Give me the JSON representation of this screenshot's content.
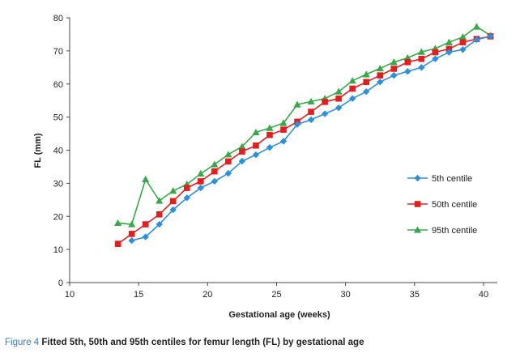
{
  "caption": {
    "figure_label": "Figure 4",
    "text": "Fitted 5th, 50th and 95th centiles for femur length (FL) by gestational age"
  },
  "chart_data": {
    "type": "line",
    "xlabel": "Gestational age (weeks)",
    "ylabel": "FL (mm)",
    "xlim": [
      10,
      41
    ],
    "ylim": [
      0,
      80
    ],
    "xticks": [
      10,
      15,
      20,
      25,
      30,
      35,
      40
    ],
    "yticks": [
      0,
      10,
      20,
      30,
      40,
      50,
      60,
      70,
      80
    ],
    "grid": false,
    "legend_position": "right",
    "series": [
      {
        "name": "5th centile",
        "color": "#2f8fd8",
        "marker": "diamond",
        "x": [
          14.5,
          15.5,
          16.5,
          17.5,
          18.5,
          19.5,
          20.5,
          21.5,
          22.5,
          23.5,
          24.5,
          25.5,
          26.5,
          27.5,
          28.5,
          29.5,
          30.5,
          31.5,
          32.5,
          33.5,
          34.5,
          35.5,
          36.5,
          37.5,
          38.5,
          39.5,
          40.5
        ],
        "values": [
          12.7,
          13.8,
          17.6,
          22.0,
          25.6,
          28.6,
          30.6,
          33.0,
          36.7,
          38.6,
          40.8,
          42.7,
          47.8,
          49.2,
          51.0,
          52.8,
          55.6,
          57.7,
          60.6,
          62.6,
          63.8,
          65.0,
          67.6,
          69.6,
          70.4,
          73.4,
          74.4
        ]
      },
      {
        "name": "50th centile",
        "color": "#e02020",
        "marker": "square",
        "x": [
          13.5,
          14.5,
          15.5,
          16.5,
          17.5,
          18.5,
          19.5,
          20.5,
          21.5,
          22.5,
          23.5,
          24.5,
          25.5,
          26.5,
          27.5,
          28.5,
          29.5,
          30.5,
          31.5,
          32.5,
          33.5,
          34.5,
          35.5,
          36.5,
          37.5,
          38.5,
          39.5,
          40.5
        ],
        "values": [
          11.7,
          14.7,
          17.6,
          20.6,
          24.6,
          28.6,
          30.6,
          33.6,
          36.6,
          39.6,
          41.4,
          44.6,
          46.2,
          48.6,
          51.6,
          54.6,
          55.6,
          58.6,
          60.6,
          62.6,
          64.6,
          66.6,
          67.6,
          69.6,
          70.6,
          72.6,
          73.6,
          74.4
        ]
      },
      {
        "name": "95th centile",
        "color": "#3aa84a",
        "marker": "triangle",
        "x": [
          13.5,
          14.5,
          15.5,
          16.5,
          17.5,
          18.5,
          19.5,
          20.5,
          21.5,
          22.5,
          23.5,
          24.5,
          25.5,
          26.5,
          27.5,
          28.5,
          29.5,
          30.5,
          31.5,
          32.5,
          33.5,
          34.5,
          35.5,
          36.5,
          37.5,
          38.5,
          39.5,
          40.5
        ],
        "values": [
          18.0,
          17.6,
          31.2,
          24.7,
          27.7,
          29.7,
          32.9,
          35.7,
          38.7,
          41.1,
          45.4,
          46.7,
          48.2,
          53.8,
          54.7,
          55.6,
          57.7,
          61.0,
          62.9,
          64.7,
          66.6,
          67.9,
          69.7,
          70.7,
          72.6,
          74.2,
          77.3,
          74.7
        ]
      }
    ]
  }
}
